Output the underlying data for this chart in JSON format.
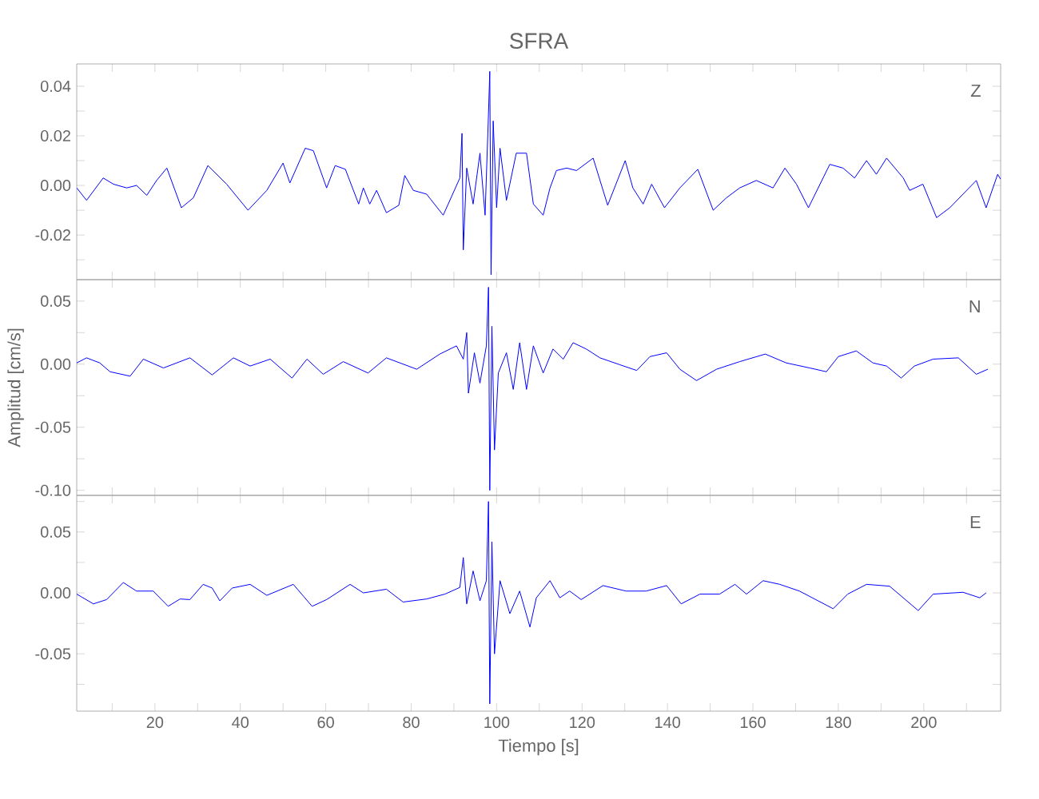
{
  "chart_data": [
    {
      "type": "line",
      "title": "SFRA",
      "annotations": [
        "Z"
      ],
      "tick_labels": "y",
      "xlim": [
        1.7,
        218
      ],
      "ylim": [
        -0.038,
        0.049
      ],
      "xticks": [
        {
          "value": 10,
          "label": null
        },
        {
          "value": 20,
          "label": null
        },
        {
          "value": 30,
          "label": null
        },
        {
          "value": 40,
          "label": null
        },
        {
          "value": 50,
          "label": null
        },
        {
          "value": 60,
          "label": null
        },
        {
          "value": 70,
          "label": null
        },
        {
          "value": 80,
          "label": null
        },
        {
          "value": 90,
          "label": null
        },
        {
          "value": 100,
          "label": null
        },
        {
          "value": 110,
          "label": null
        },
        {
          "value": 120,
          "label": null
        },
        {
          "value": 130,
          "label": null
        },
        {
          "value": 140,
          "label": null
        },
        {
          "value": 150,
          "label": null
        },
        {
          "value": 160,
          "label": null
        },
        {
          "value": 170,
          "label": null
        },
        {
          "value": 180,
          "label": null
        },
        {
          "value": 190,
          "label": null
        },
        {
          "value": 200,
          "label": null
        },
        {
          "value": 210,
          "label": null
        }
      ],
      "yticks": [
        {
          "value": -0.03,
          "label": null
        },
        {
          "value": -0.02,
          "label": "-0.02"
        },
        {
          "value": -0.01,
          "label": null
        },
        {
          "value": 0,
          "label": "0.00"
        },
        {
          "value": 0.01,
          "label": null
        },
        {
          "value": 0.02,
          "label": "0.02"
        },
        {
          "value": 0.03,
          "label": null
        },
        {
          "value": 0.04,
          "label": "0.04"
        }
      ],
      "x": [
        1.7,
        4.0,
        7.9,
        10.3,
        13.4,
        15.7,
        18.1,
        20.4,
        22.8,
        26.2,
        29.0,
        32.4,
        36.8,
        41.8,
        46.2,
        50.0,
        51.6,
        55.2,
        57.1,
        60.2,
        62.2,
        64.6,
        67.7,
        68.8,
        70.3,
        71.9,
        74.2,
        77.1,
        78.5,
        80.5,
        83.6,
        87.5,
        91.4,
        91.9,
        92.2,
        93.0,
        94.5,
        96.1,
        97.3,
        98.1,
        98.4,
        98.7,
        99.2,
        100.0,
        100.8,
        102.3,
        104.6,
        107.0,
        108.6,
        110.9,
        112.5,
        114.0,
        116.4,
        118.7,
        122.6,
        126.0,
        130.1,
        131.9,
        134.3,
        136.3,
        139.3,
        142.9,
        147.1,
        150.7,
        153.8,
        156.9,
        160.8,
        164.7,
        167.5,
        170.2,
        173.0,
        178.0,
        181.1,
        183.8,
        186.6,
        188.9,
        191.3,
        195.2,
        196.7,
        199.8,
        203.0,
        206.1,
        212.3,
        214.6,
        217.3,
        218
      ],
      "series": [
        {
          "color": "#0000ff",
          "values": [
            -0.001,
            -0.006,
            0.003,
            0.0005,
            -0.001,
            0,
            -0.004,
            0.002,
            0.007,
            -0.009,
            -0.005,
            0.008,
            0.0005,
            -0.01,
            -0.002,
            0.009,
            0.001,
            0.015,
            0.014,
            -0.001,
            0.008,
            0.0065,
            -0.0075,
            -0.001,
            -0.0075,
            -0.002,
            -0.011,
            -0.008,
            0.004,
            -0.002,
            -0.0035,
            -0.012,
            0.003,
            0.021,
            -0.026,
            0.007,
            -0.0075,
            0.013,
            -0.012,
            0.029,
            0.046,
            -0.036,
            0.026,
            -0.009,
            0.015,
            -0.006,
            0.013,
            0.013,
            -0.0075,
            -0.012,
            -0.001,
            0.006,
            0.007,
            0.006,
            0.011,
            -0.008,
            0.01,
            -0.001,
            -0.0075,
            0.0005,
            -0.009,
            -0.001,
            0.0065,
            -0.01,
            -0.005,
            -0.001,
            0.002,
            -0.001,
            0.007,
            0.0005,
            -0.009,
            0.0085,
            0.007,
            0.003,
            0.01,
            0.0045,
            0.011,
            0.003,
            -0.002,
            0.0005,
            -0.013,
            -0.009,
            0.002,
            -0.009,
            0.0045,
            0.0025
          ]
        }
      ]
    },
    {
      "type": "line",
      "ylabel": "Amplitud [cm/s]",
      "annotations": [
        "N"
      ],
      "tick_labels": "y",
      "xlim": [
        1.7,
        218
      ],
      "ylim": [
        -0.104,
        0.067
      ],
      "xticks": [
        {
          "value": 10,
          "label": null
        },
        {
          "value": 20,
          "label": null
        },
        {
          "value": 30,
          "label": null
        },
        {
          "value": 40,
          "label": null
        },
        {
          "value": 50,
          "label": null
        },
        {
          "value": 60,
          "label": null
        },
        {
          "value": 70,
          "label": null
        },
        {
          "value": 80,
          "label": null
        },
        {
          "value": 90,
          "label": null
        },
        {
          "value": 100,
          "label": null
        },
        {
          "value": 110,
          "label": null
        },
        {
          "value": 120,
          "label": null
        },
        {
          "value": 130,
          "label": null
        },
        {
          "value": 140,
          "label": null
        },
        {
          "value": 150,
          "label": null
        },
        {
          "value": 160,
          "label": null
        },
        {
          "value": 170,
          "label": null
        },
        {
          "value": 180,
          "label": null
        },
        {
          "value": 190,
          "label": null
        },
        {
          "value": 200,
          "label": null
        },
        {
          "value": 210,
          "label": null
        }
      ],
      "yticks": [
        {
          "value": -0.1,
          "label": "-0.10"
        },
        {
          "value": -0.075,
          "label": null
        },
        {
          "value": -0.05,
          "label": "-0.05"
        },
        {
          "value": -0.025,
          "label": null
        },
        {
          "value": 0,
          "label": "0.00"
        },
        {
          "value": 0.025,
          "label": null
        },
        {
          "value": 0.05,
          "label": "0.05"
        }
      ],
      "x": [
        1.7,
        4.0,
        7.1,
        9.5,
        14.2,
        17.3,
        22.0,
        28.2,
        33.4,
        38.4,
        42.3,
        47.0,
        52.1,
        55.6,
        59.4,
        64.1,
        69.9,
        74.2,
        81.3,
        86.7,
        90.6,
        92.2,
        93.0,
        93.4,
        94.8,
        96.1,
        97.6,
        98.1,
        98.4,
        98.9,
        99.5,
        100.4,
        102.3,
        103.9,
        105.4,
        107.0,
        108.6,
        110.9,
        113.2,
        115.6,
        117.9,
        121.0,
        124.2,
        128.9,
        132.8,
        135.9,
        139.8,
        142.9,
        146.8,
        151.5,
        156.9,
        162.9,
        167.8,
        173.3,
        177.2,
        180.0,
        184.2,
        188.1,
        191.3,
        194.7,
        197.8,
        202.2,
        208.1,
        212.3,
        215.0
      ],
      "series": [
        {
          "color": "#0000ff",
          "values": [
            0.001,
            0.005,
            0.001,
            -0.006,
            -0.0095,
            0.004,
            -0.003,
            0.005,
            -0.0085,
            0.005,
            -0.0015,
            0.004,
            -0.011,
            0.004,
            -0.008,
            0.002,
            -0.007,
            0.005,
            -0.004,
            0.008,
            0.0145,
            0.004,
            0.025,
            -0.023,
            0.009,
            -0.015,
            0.0145,
            0.061,
            -0.1,
            0.03,
            -0.068,
            -0.007,
            0.009,
            -0.02,
            0.017,
            -0.02,
            0.0145,
            -0.007,
            0.012,
            0.004,
            0.017,
            0.012,
            0.005,
            -0.0005,
            -0.005,
            0.006,
            0.009,
            -0.004,
            -0.013,
            -0.004,
            0.002,
            0.008,
            0.001,
            -0.003,
            -0.006,
            0.006,
            0.0105,
            0.001,
            -0.0015,
            -0.011,
            -0.0015,
            0.004,
            0.005,
            -0.008,
            -0.004
          ]
        }
      ]
    },
    {
      "type": "line",
      "xlabel": "Tiempo [s]",
      "annotations": [
        "E"
      ],
      "xlim": [
        1.7,
        218
      ],
      "ylim": [
        -0.097,
        0.08
      ],
      "xticks": [
        {
          "value": 10,
          "label": null
        },
        20,
        {
          "value": 30,
          "label": null
        },
        40,
        {
          "value": 50,
          "label": null
        },
        60,
        {
          "value": 70,
          "label": null
        },
        80,
        {
          "value": 90,
          "label": null
        },
        100,
        {
          "value": 110,
          "label": null
        },
        120,
        {
          "value": 130,
          "label": null
        },
        140,
        {
          "value": 150,
          "label": null
        },
        160,
        {
          "value": 170,
          "label": null
        },
        180,
        {
          "value": 190,
          "label": null
        },
        200,
        {
          "value": 210,
          "label": null
        }
      ],
      "yticks": [
        {
          "value": -0.075,
          "label": null
        },
        {
          "value": -0.05,
          "label": "-0.05"
        },
        {
          "value": -0.025,
          "label": null
        },
        {
          "value": 0,
          "label": "0.00"
        },
        {
          "value": 0.025,
          "label": null
        },
        {
          "value": 0.05,
          "label": "0.05"
        },
        {
          "value": 0.075,
          "label": null
        }
      ],
      "x": [
        1.7,
        5.6,
        8.7,
        12.6,
        15.7,
        19.6,
        23.1,
        25.9,
        28.2,
        31.3,
        33.4,
        35.2,
        38.1,
        42.3,
        46.2,
        52.4,
        56.8,
        60.2,
        65.7,
        68.8,
        74.2,
        78.1,
        83.6,
        87.9,
        91.4,
        92.2,
        93.0,
        94.5,
        96.1,
        97.6,
        98.1,
        98.4,
        98.9,
        99.5,
        100.8,
        103.1,
        105.4,
        107.8,
        109.3,
        112.5,
        114.8,
        117.1,
        119.8,
        124.9,
        130.3,
        135.0,
        139.8,
        143.2,
        147.6,
        152.2,
        155.8,
        158.5,
        162.4,
        166.3,
        170.9,
        178.8,
        182.2,
        186.6,
        192.0,
        198.7,
        202.2,
        209.2,
        213.1,
        214.6
      ],
      "series": [
        {
          "color": "#0000ff",
          "values": [
            -0.001,
            -0.009,
            -0.0055,
            0.0085,
            0.0015,
            0.0015,
            -0.011,
            -0.005,
            -0.0055,
            0.007,
            0.004,
            -0.0065,
            0.004,
            0.007,
            -0.002,
            0.007,
            -0.011,
            -0.0055,
            0.007,
            0,
            0.003,
            -0.0075,
            -0.005,
            -0.001,
            0.0045,
            0.029,
            -0.009,
            0.018,
            -0.0065,
            0.01,
            0.075,
            -0.091,
            0.042,
            -0.05,
            0.01,
            -0.017,
            0.0015,
            -0.028,
            -0.004,
            0.01,
            -0.004,
            0.0015,
            -0.0055,
            0.006,
            0.0015,
            0.0015,
            0.006,
            -0.009,
            -0.001,
            -0.001,
            0.007,
            -0.001,
            0.01,
            0.007,
            0.0015,
            -0.013,
            -0.001,
            0.007,
            0.0055,
            -0.0145,
            -0.001,
            0.0005,
            -0.004,
            0
          ]
        }
      ]
    }
  ]
}
